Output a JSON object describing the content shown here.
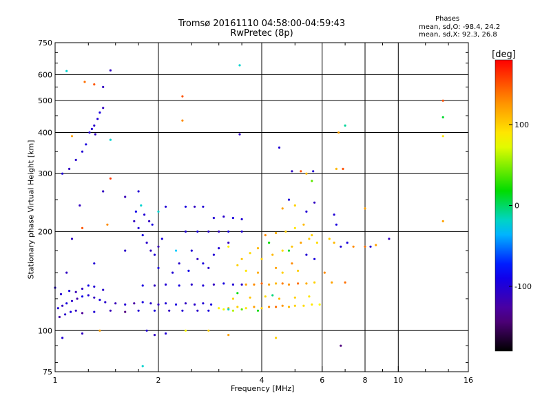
{
  "header": {
    "title_line1": "Tromsø 20161110 04:58:00-04:59:43",
    "title_line2": "RwPretec (8p)",
    "stats_title": "Phases",
    "stats_o": "mean, sd,O:  -98.4, 24.2",
    "stats_x": "mean, sd,X:   92.3, 26.8"
  },
  "colorbar": {
    "unit_label": "[deg]",
    "tick_labels": [
      "100",
      "0",
      "-100"
    ],
    "tick_values": [
      100,
      0,
      -100
    ],
    "range": [
      -180,
      180
    ]
  },
  "chart_data": {
    "type": "scatter",
    "x_scale": "log",
    "y_scale": "log",
    "xlabel": "Frequency [MHz]",
    "ylabel": "Stationary phase Virtual Height [km]",
    "xlim": [
      1,
      16
    ],
    "ylim": [
      75,
      750
    ],
    "x_ticks": [
      1,
      2,
      4,
      6,
      8,
      10,
      16
    ],
    "x_tick_labels": [
      "1",
      "2",
      "4",
      "6",
      "8",
      "10",
      "16"
    ],
    "x_grid": [
      2,
      4,
      6,
      8,
      10
    ],
    "y_ticks": [
      75,
      100,
      200,
      300,
      400,
      500,
      600,
      750
    ],
    "y_tick_labels": [
      "75",
      "100",
      "200",
      "300",
      "400",
      "500",
      "600",
      "750"
    ],
    "y_grid": [
      100,
      200,
      300,
      400,
      500,
      600
    ],
    "grid": true,
    "points": [
      [
        1.02,
        117,
        -100
      ],
      [
        1.05,
        119,
        -110
      ],
      [
        1.08,
        121,
        -95
      ],
      [
        1.12,
        123,
        -105
      ],
      [
        1.16,
        125,
        -120
      ],
      [
        1.2,
        127,
        -90
      ],
      [
        1.25,
        128,
        -100
      ],
      [
        1.3,
        126,
        -110
      ],
      [
        1.35,
        124,
        -95
      ],
      [
        1.4,
        122,
        -105
      ],
      [
        1.5,
        121,
        -115
      ],
      [
        1.6,
        120,
        -100
      ],
      [
        1.7,
        121,
        -125
      ],
      [
        1.8,
        122,
        -95
      ],
      [
        1.9,
        121,
        -105
      ],
      [
        2.0,
        120,
        -110
      ],
      [
        2.1,
        121,
        -100
      ],
      [
        2.25,
        120,
        -95
      ],
      [
        2.4,
        121,
        -110
      ],
      [
        2.55,
        120,
        -105
      ],
      [
        2.7,
        121,
        -100
      ],
      [
        2.85,
        120,
        -95
      ],
      [
        1.03,
        110,
        -120
      ],
      [
        1.07,
        112,
        -105
      ],
      [
        1.11,
        114,
        -95
      ],
      [
        1.15,
        115,
        -110
      ],
      [
        1.2,
        113,
        -130
      ],
      [
        1.3,
        114,
        -100
      ],
      [
        1.45,
        115,
        -115
      ],
      [
        1.6,
        114,
        -140
      ],
      [
        1.75,
        115,
        -100
      ],
      [
        1.95,
        115,
        -95
      ],
      [
        2.15,
        115,
        -110
      ],
      [
        2.35,
        115,
        -100
      ],
      [
        2.6,
        115,
        -105
      ],
      [
        2.8,
        115,
        -95
      ],
      [
        1.04,
        129,
        -100
      ],
      [
        1.1,
        132,
        -95
      ],
      [
        1.2,
        134,
        -110
      ],
      [
        1.3,
        136,
        -100
      ],
      [
        1.38,
        133,
        -105
      ],
      [
        1.25,
        137,
        -90
      ],
      [
        1.15,
        131,
        -115
      ],
      [
        1.8,
        137,
        -95
      ],
      [
        1.95,
        137,
        -110
      ],
      [
        2.1,
        138,
        -100
      ],
      [
        2.3,
        137,
        -95
      ],
      [
        2.5,
        138,
        -105
      ],
      [
        2.7,
        137,
        -100
      ],
      [
        2.9,
        138,
        -110
      ],
      [
        3.1,
        139,
        -95
      ],
      [
        3.3,
        138,
        -100
      ],
      [
        3.5,
        138,
        -105
      ],
      [
        3.2,
        117,
        110
      ],
      [
        3.4,
        118,
        100
      ],
      [
        3.6,
        117,
        90
      ],
      [
        3.8,
        118,
        120
      ],
      [
        4.0,
        117,
        100
      ],
      [
        4.2,
        118,
        130
      ],
      [
        4.4,
        118,
        140
      ],
      [
        4.6,
        119,
        125
      ],
      [
        4.8,
        118,
        110
      ],
      [
        5.0,
        119,
        100
      ],
      [
        5.3,
        119,
        95
      ],
      [
        5.6,
        120,
        90
      ],
      [
        5.9,
        120,
        80
      ],
      [
        3.0,
        117,
        85
      ],
      [
        3.1,
        116,
        75
      ],
      [
        3.3,
        115,
        60
      ],
      [
        3.5,
        116,
        40
      ],
      [
        3.9,
        115,
        20
      ],
      [
        3.2,
        116,
        -20
      ],
      [
        3.6,
        138,
        120
      ],
      [
        3.8,
        138,
        130
      ],
      [
        4.0,
        139,
        145
      ],
      [
        4.2,
        138,
        120
      ],
      [
        4.4,
        139,
        110
      ],
      [
        4.6,
        139,
        135
      ],
      [
        4.8,
        138,
        125
      ],
      [
        5.1,
        139,
        140
      ],
      [
        5.4,
        139,
        115
      ],
      [
        5.7,
        140,
        100
      ],
      [
        3.3,
        125,
        100
      ],
      [
        3.7,
        126,
        105
      ],
      [
        4.1,
        127,
        95
      ],
      [
        4.5,
        125,
        110
      ],
      [
        5.0,
        126,
        100
      ],
      [
        5.5,
        127,
        90
      ],
      [
        4.3,
        128,
        -5
      ],
      [
        3.4,
        130,
        15
      ],
      [
        4.0,
        165,
        100
      ],
      [
        4.3,
        170,
        110
      ],
      [
        4.6,
        175,
        95
      ],
      [
        4.9,
        180,
        105
      ],
      [
        5.2,
        185,
        120
      ],
      [
        5.5,
        190,
        100
      ],
      [
        4.1,
        195,
        130
      ],
      [
        4.4,
        198,
        115
      ],
      [
        4.7,
        200,
        100
      ],
      [
        5.0,
        205,
        90
      ],
      [
        5.3,
        210,
        110
      ],
      [
        5.6,
        195,
        100
      ],
      [
        5.8,
        185,
        95
      ],
      [
        4.2,
        185,
        20
      ],
      [
        4.8,
        175,
        10
      ],
      [
        5.4,
        170,
        -100
      ],
      [
        5.7,
        165,
        -95
      ],
      [
        3.5,
        165,
        105
      ],
      [
        3.7,
        172,
        95
      ],
      [
        3.9,
        178,
        110
      ],
      [
        3.2,
        180,
        85
      ],
      [
        3.4,
        158,
        100
      ],
      [
        3.6,
        152,
        90
      ],
      [
        3.9,
        150,
        115
      ],
      [
        4.4,
        155,
        120
      ],
      [
        4.6,
        150,
        100
      ],
      [
        4.9,
        160,
        130
      ],
      [
        5.1,
        152,
        100
      ],
      [
        1.7,
        215,
        -110
      ],
      [
        1.75,
        205,
        -100
      ],
      [
        1.8,
        195,
        -95
      ],
      [
        1.85,
        185,
        -105
      ],
      [
        1.9,
        175,
        -110
      ],
      [
        1.95,
        170,
        -100
      ],
      [
        2.0,
        180,
        -115
      ],
      [
        2.05,
        190,
        -95
      ],
      [
        1.72,
        230,
        -90
      ],
      [
        1.78,
        240,
        -20
      ],
      [
        1.82,
        225,
        -100
      ],
      [
        1.88,
        215,
        -110
      ],
      [
        1.92,
        210,
        -95
      ],
      [
        2.1,
        238,
        -100
      ],
      [
        2.4,
        238,
        -95
      ],
      [
        2.55,
        238,
        -110
      ],
      [
        2.7,
        238,
        -100
      ],
      [
        2.4,
        200,
        -100
      ],
      [
        2.6,
        200,
        -95
      ],
      [
        2.8,
        200,
        -105
      ],
      [
        3.0,
        200,
        -110
      ],
      [
        3.2,
        200,
        -95
      ],
      [
        3.5,
        200,
        -100
      ],
      [
        2.5,
        175,
        -100
      ],
      [
        2.6,
        165,
        -110
      ],
      [
        2.7,
        160,
        -95
      ],
      [
        2.8,
        155,
        -105
      ],
      [
        2.9,
        170,
        -100
      ],
      [
        2.45,
        152,
        -90
      ],
      [
        2.3,
        160,
        -105
      ],
      [
        2.2,
        150,
        -100
      ],
      [
        2.0,
        155,
        -95
      ],
      [
        2.9,
        220,
        -100
      ],
      [
        3.1,
        222,
        -105
      ],
      [
        3.3,
        220,
        -95
      ],
      [
        3.5,
        218,
        -100
      ],
      [
        3.2,
        185,
        -110
      ],
      [
        3.0,
        178,
        -100
      ],
      [
        2.25,
        175,
        -30
      ],
      [
        2.0,
        230,
        -20
      ],
      [
        1.6,
        255,
        -115
      ],
      [
        1.75,
        265,
        -100
      ],
      [
        1.05,
        300,
        -100
      ],
      [
        1.1,
        310,
        -110
      ],
      [
        1.15,
        330,
        -105
      ],
      [
        1.2,
        350,
        -100
      ],
      [
        1.23,
        368,
        -95
      ],
      [
        1.26,
        400,
        -100
      ],
      [
        1.3,
        420,
        -105
      ],
      [
        1.33,
        440,
        -100
      ],
      [
        1.35,
        460,
        -95
      ],
      [
        1.38,
        475,
        -110
      ],
      [
        1.28,
        410,
        -100
      ],
      [
        1.31,
        395,
        -110
      ],
      [
        1.08,
        615,
        -20
      ],
      [
        1.45,
        618,
        -110
      ],
      [
        1.22,
        570,
        140
      ],
      [
        1.3,
        560,
        150
      ],
      [
        1.38,
        550,
        -110
      ],
      [
        1.12,
        390,
        120
      ],
      [
        1.45,
        380,
        -20
      ],
      [
        1.18,
        240,
        -110
      ],
      [
        1.45,
        290,
        160
      ],
      [
        1.38,
        265,
        -110
      ],
      [
        2.35,
        515,
        150
      ],
      [
        2.35,
        435,
        130
      ],
      [
        3.45,
        640,
        -20
      ],
      [
        3.45,
        395,
        -110
      ],
      [
        4.5,
        360,
        -100
      ],
      [
        4.9,
        305,
        -110
      ],
      [
        5.2,
        305,
        150
      ],
      [
        5.4,
        300,
        110
      ],
      [
        5.65,
        305,
        -100
      ],
      [
        5.6,
        285,
        40
      ],
      [
        4.8,
        250,
        -100
      ],
      [
        4.6,
        235,
        120
      ],
      [
        5.0,
        240,
        100
      ],
      [
        5.4,
        230,
        -100
      ],
      [
        5.7,
        245,
        -110
      ],
      [
        6.6,
        310,
        110
      ],
      [
        6.9,
        310,
        150
      ],
      [
        6.7,
        400,
        120
      ],
      [
        7.0,
        420,
        -10
      ],
      [
        8.0,
        235,
        120
      ],
      [
        13.5,
        500,
        150
      ],
      [
        13.5,
        445,
        10
      ],
      [
        13.5,
        390,
        90
      ],
      [
        13.5,
        215,
        120
      ],
      [
        6.3,
        190,
        100
      ],
      [
        6.5,
        185,
        110
      ],
      [
        6.8,
        180,
        -100
      ],
      [
        7.1,
        185,
        -95
      ],
      [
        7.4,
        180,
        130
      ],
      [
        8.0,
        180,
        140
      ],
      [
        8.3,
        180,
        -100
      ],
      [
        8.6,
        182,
        120
      ],
      [
        9.4,
        190,
        -110
      ],
      [
        6.5,
        225,
        -100
      ],
      [
        6.6,
        210,
        -95
      ],
      [
        6.1,
        150,
        130
      ],
      [
        6.4,
        140,
        120
      ],
      [
        7.0,
        140,
        140
      ],
      [
        1.2,
        98,
        -110
      ],
      [
        1.35,
        100,
        120
      ],
      [
        1.85,
        100,
        -100
      ],
      [
        1.95,
        97,
        -110
      ],
      [
        2.1,
        98,
        -100
      ],
      [
        2.4,
        100,
        80
      ],
      [
        2.8,
        100,
        100
      ],
      [
        3.2,
        97,
        120
      ],
      [
        4.4,
        95,
        100
      ],
      [
        6.8,
        90,
        -140
      ],
      [
        1.05,
        95,
        -100
      ],
      [
        1.8,
        78,
        -20
      ],
      [
        1.0,
        135,
        -100
      ],
      [
        1.08,
        150,
        -110
      ],
      [
        1.3,
        160,
        -100
      ],
      [
        1.6,
        175,
        -105
      ],
      [
        1.12,
        190,
        -110
      ],
      [
        1.2,
        205,
        150
      ],
      [
        1.42,
        210,
        130
      ]
    ]
  }
}
